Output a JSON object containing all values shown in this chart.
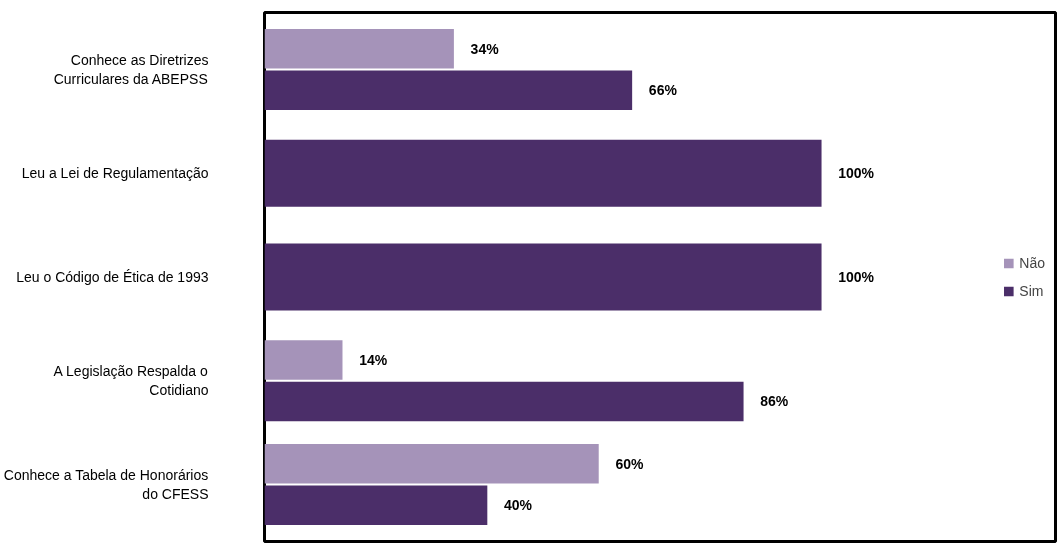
{
  "chart_data": {
    "type": "bar",
    "orientation": "horizontal",
    "categories": [
      "Conhece as Diretrizes Curriculares da ABEPSS",
      "Leu a Lei de Regulamentação",
      "Leu o Código de Ética de 1993",
      "A Legislação Respalda o Cotidiano",
      "Conhece a Tabela de Honorários do CFESS"
    ],
    "series": [
      {
        "name": "Não",
        "color": "#a593b9",
        "values": [
          34,
          null,
          null,
          14,
          60
        ],
        "value_labels": [
          "34%",
          null,
          null,
          "14%",
          "60%"
        ]
      },
      {
        "name": "Sim",
        "color": "#4b2e69",
        "values": [
          66,
          100,
          100,
          86,
          40
        ],
        "value_labels": [
          "66%",
          "100%",
          "100%",
          "86%",
          "40%"
        ]
      }
    ],
    "xlim": [
      0,
      100
    ],
    "tick_labels": "y",
    "grid": false,
    "legend": "right"
  }
}
